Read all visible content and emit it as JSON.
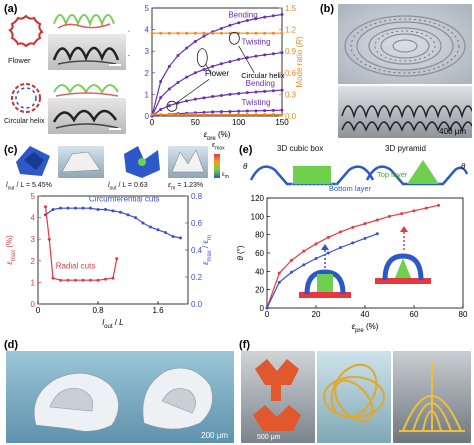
{
  "panel_labels": {
    "a": "(a)",
    "b": "(b)",
    "c": "(c)",
    "d": "(d)",
    "e": "(e)",
    "f": "(f)"
  },
  "panel_a": {
    "flower_label": "Flower",
    "helix_label": "Circular helix"
  },
  "panel_b": {
    "scale_text": "400 μm"
  },
  "panel_c": {
    "cases": [
      {
        "ratio_text": "l",
        "ratio_sub": "out",
        "ratio_tail": " / L = 5.45%"
      },
      {
        "ratio_text": "l",
        "ratio_sub": "out",
        "ratio_tail": " / L = 0.63"
      },
      {
        "ratio_text": "ε",
        "ratio_sub": "m",
        "ratio_tail": " = 1.23%"
      }
    ],
    "colorbar_label_top": "ε",
    "colorbar_sub": "max",
    "colorbar_label_bottom": "m"
  },
  "panel_d": {
    "scale_text": "200 μm"
  },
  "panel_e": {
    "title_box": "3D cubic box",
    "title_pyramid": "3D pyramid",
    "top_layer": "Top layer",
    "bottom_layer": "Bottom layer",
    "theta": "θ"
  },
  "panel_f": {
    "scale_text": "500 μm"
  },
  "colors": {
    "purple": "#6a2fb8",
    "orange": "#f08a24",
    "red": "#e8383f",
    "blue": "#3a4fd8",
    "green": "#5cc83c",
    "panel_bg_d": "#7ab0c8"
  },
  "chart_data": [
    {
      "id": "a",
      "type": "line",
      "xlabel": "ε_pre (%)",
      "ylabel": "Curvature (mm⁻¹)",
      "y2label": "Mode ratio (R)",
      "xlim": [
        0,
        150
      ],
      "ylim": [
        0,
        5
      ],
      "y2lim": [
        0,
        1.5
      ],
      "xticks": [
        0,
        50,
        100,
        150
      ],
      "yticks": [
        0,
        1,
        2,
        3,
        4,
        5
      ],
      "y2ticks": [
        0.0,
        0.3,
        0.6,
        0.9,
        1.2,
        1.5
      ],
      "annotations": [
        "Bending",
        "Twisting",
        "Bending",
        "Twisting",
        "Flower",
        "Circular helix"
      ],
      "series": [
        {
          "axis": "left",
          "color": "#6a2fb8",
          "x": [
            0,
            10,
            20,
            30,
            40,
            50,
            60,
            70,
            80,
            90,
            100,
            110,
            120,
            130,
            140,
            150
          ],
          "y": [
            0,
            1.6,
            2.3,
            2.8,
            3.15,
            3.45,
            3.7,
            3.9,
            4.05,
            4.2,
            4.32,
            4.42,
            4.5,
            4.58,
            4.64,
            4.7
          ]
        },
        {
          "axis": "left",
          "color": "#6a2fb8",
          "x": [
            0,
            10,
            20,
            30,
            40,
            50,
            60,
            70,
            80,
            90,
            100,
            110,
            120,
            130,
            140,
            150
          ],
          "y": [
            0,
            0.85,
            1.25,
            1.55,
            1.8,
            2.0,
            2.15,
            2.3,
            2.42,
            2.52,
            2.62,
            2.7,
            2.77,
            2.83,
            2.88,
            2.93
          ]
        },
        {
          "axis": "left",
          "color": "#6a2fb8",
          "x": [
            0,
            10,
            20,
            30,
            40,
            50,
            60,
            70,
            80,
            90,
            100,
            110,
            120,
            130,
            140,
            150
          ],
          "y": [
            0,
            0.3,
            0.48,
            0.6,
            0.7,
            0.78,
            0.84,
            0.9,
            0.95,
            1.0,
            1.04,
            1.08,
            1.11,
            1.14,
            1.17,
            1.2
          ]
        },
        {
          "axis": "left",
          "color": "#6a2fb8",
          "x": [
            0,
            10,
            20,
            30,
            40,
            50,
            60,
            70,
            80,
            90,
            100,
            110,
            120,
            130,
            140,
            150
          ],
          "y": [
            0,
            0.05,
            0.08,
            0.11,
            0.13,
            0.15,
            0.17,
            0.19,
            0.2,
            0.21,
            0.22,
            0.23,
            0.24,
            0.25,
            0.26,
            0.27
          ]
        },
        {
          "axis": "right",
          "color": "#f08a24",
          "x": [
            0,
            10,
            20,
            30,
            40,
            50,
            60,
            70,
            80,
            90,
            100,
            110,
            120,
            130,
            140,
            150
          ],
          "y": [
            1.15,
            1.15,
            1.15,
            1.15,
            1.15,
            1.15,
            1.15,
            1.15,
            1.15,
            1.15,
            1.15,
            1.15,
            1.15,
            1.15,
            1.15,
            1.15
          ]
        },
        {
          "axis": "right",
          "color": "#f08a24",
          "x": [
            0,
            10,
            20,
            30,
            40,
            50,
            60,
            70,
            80,
            90,
            100,
            110,
            120,
            130,
            140,
            150
          ],
          "y": [
            0.02,
            0.02,
            0.02,
            0.02,
            0.02,
            0.02,
            0.02,
            0.02,
            0.02,
            0.02,
            0.02,
            0.02,
            0.02,
            0.02,
            0.02,
            0.02
          ]
        }
      ]
    },
    {
      "id": "c",
      "type": "line",
      "xlabel": "l_out / L",
      "ylabel": "ε_max (%)",
      "y2label": "ε_max / ε_m",
      "xlim": [
        0,
        2.0
      ],
      "ylim": [
        0,
        5
      ],
      "y2lim": [
        0,
        0.8
      ],
      "xticks": [
        0,
        0.8,
        1.6
      ],
      "yticks": [
        0,
        1,
        2,
        3,
        4,
        5
      ],
      "y2ticks": [
        0,
        0.2,
        0.4,
        0.6,
        0.8
      ],
      "annotations": [
        "Circumferential cuts",
        "Radial cuts"
      ],
      "series": [
        {
          "name": "Circumferential cuts",
          "axis": "right",
          "color": "#3a4fd8",
          "x": [
            0.1,
            0.2,
            0.3,
            0.4,
            0.5,
            0.6,
            0.7,
            0.8,
            0.9,
            1.0,
            1.1,
            1.2,
            1.3,
            1.4,
            1.5,
            1.6,
            1.7,
            1.8,
            1.9
          ],
          "y": [
            0.66,
            0.7,
            0.71,
            0.71,
            0.71,
            0.71,
            0.71,
            0.7,
            0.7,
            0.69,
            0.68,
            0.66,
            0.64,
            0.6,
            0.57,
            0.55,
            0.53,
            0.5,
            0.49
          ]
        },
        {
          "name": "Radial cuts",
          "axis": "left",
          "color": "#e8383f",
          "x": [
            0.1,
            0.15,
            0.2,
            0.3,
            0.4,
            0.5,
            0.6,
            0.7,
            0.8,
            0.9,
            1.0,
            1.05
          ],
          "y": [
            4.5,
            3.0,
            1.2,
            1.1,
            1.1,
            1.1,
            1.1,
            1.1,
            1.1,
            1.15,
            1.2,
            2.1
          ]
        }
      ]
    },
    {
      "id": "e",
      "type": "line",
      "xlabel": "ε_pre (%)",
      "ylabel": "θ (°)",
      "xlim": [
        0,
        80
      ],
      "ylim": [
        0,
        120
      ],
      "xticks": [
        0,
        20,
        40,
        60,
        80
      ],
      "yticks": [
        0,
        20,
        40,
        60,
        80,
        100,
        120
      ],
      "series": [
        {
          "axis": "left",
          "color": "#e8383f",
          "x": [
            0,
            5,
            10,
            15,
            20,
            25,
            30,
            35,
            40,
            45,
            50,
            55,
            60,
            65,
            70
          ],
          "y": [
            0,
            38,
            52,
            62,
            70,
            77,
            83,
            88,
            92,
            96,
            100,
            103,
            106,
            109,
            112
          ]
        },
        {
          "axis": "left",
          "color": "#3a4fd8",
          "x": [
            0,
            5,
            10,
            15,
            20,
            25,
            30,
            35,
            40,
            45
          ],
          "y": [
            0,
            28,
            39,
            47,
            54,
            60,
            66,
            71,
            76,
            81
          ]
        }
      ]
    }
  ]
}
